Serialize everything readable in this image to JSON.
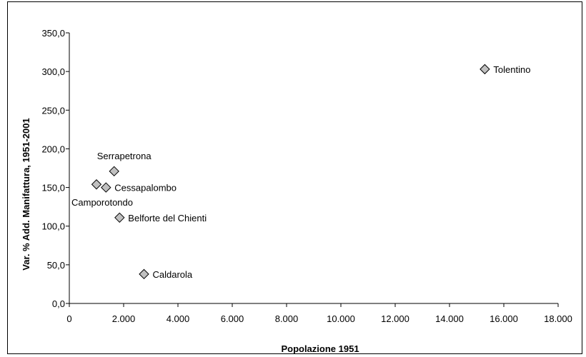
{
  "chart_data": {
    "type": "scatter",
    "title": "",
    "xlabel": "Popolazione 1951",
    "ylabel": "Var. % Add. Manifattura, 1951-2001",
    "xlim": [
      0,
      18000
    ],
    "ylim": [
      0,
      350
    ],
    "grid": false,
    "legend": "none",
    "marker_color": "#c0c0c0",
    "marker_edge_color": "#000000",
    "x_ticks": [
      0,
      2000,
      4000,
      6000,
      8000,
      10000,
      12000,
      14000,
      16000,
      18000
    ],
    "x_tick_labels": [
      "0",
      "2.000",
      "4.000",
      "6.000",
      "8.000",
      "10.000",
      "12.000",
      "14.000",
      "16.000",
      "18.000"
    ],
    "y_ticks": [
      0,
      50,
      100,
      150,
      200,
      250,
      300,
      350
    ],
    "y_tick_labels": [
      "0,0",
      "50,0",
      "100,0",
      "150,0",
      "200,0",
      "250,0",
      "300,0",
      "350,0"
    ],
    "points": [
      {
        "label": "Tolentino",
        "x": 15300,
        "y": 303,
        "label_pos": "right"
      },
      {
        "label": "Serrapetrona",
        "x": 1650,
        "y": 171,
        "label_pos": "above-right"
      },
      {
        "label": "Cessapalombo",
        "x": 1350,
        "y": 150,
        "label_pos": "right"
      },
      {
        "label": "Camporotondo",
        "x": 1000,
        "y": 154,
        "label_pos": "below"
      },
      {
        "label": "Belforte del Chienti",
        "x": 1850,
        "y": 111,
        "label_pos": "right"
      },
      {
        "label": "Caldarola",
        "x": 2750,
        "y": 38,
        "label_pos": "right"
      }
    ]
  }
}
